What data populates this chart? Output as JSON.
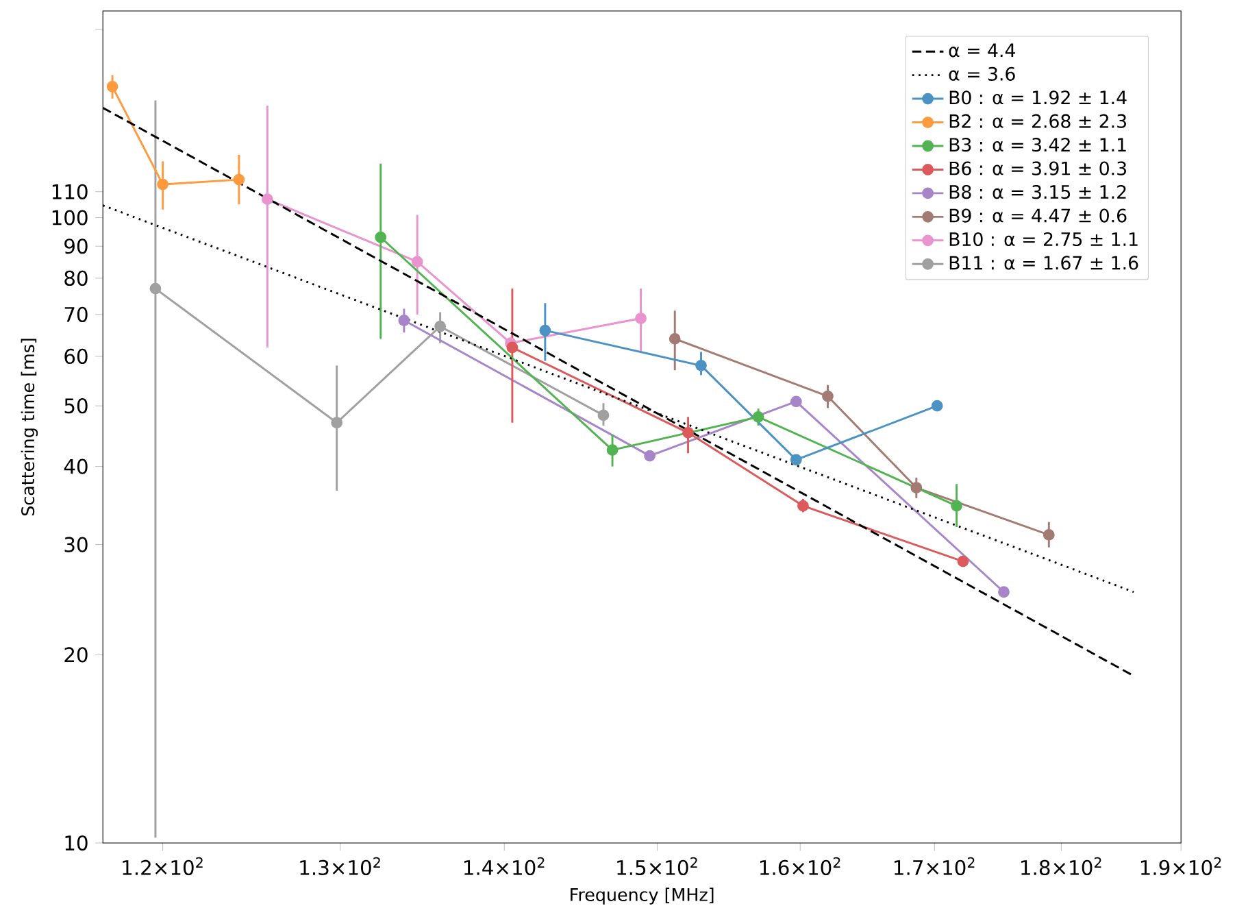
{
  "chart_data": {
    "type": "line",
    "xlabel": "Frequency [MHz]",
    "ylabel": "Scattering time [ms]",
    "log": "xy",
    "xlim": [
      116.8,
      190
    ],
    "ylim": [
      10,
      214
    ],
    "xticks": [
      {
        "value": 120,
        "label": "1.2×10$^{2}$"
      },
      {
        "value": 130,
        "label": "1.3×10$^{2}$"
      },
      {
        "value": 140,
        "label": "1.4×10$^{2}$"
      },
      {
        "value": 150,
        "label": "1.5×10$^{2}$"
      },
      {
        "value": 160,
        "label": "1.6×10$^{2}$"
      },
      {
        "value": 170,
        "label": "1.7×10$^{2}$"
      },
      {
        "value": 180,
        "label": "1.8×10$^{2}$"
      },
      {
        "value": 190,
        "label": "1.9×10$^{2}$"
      }
    ],
    "yticks": [
      10,
      20,
      30,
      40,
      50,
      60,
      70,
      80,
      90,
      100,
      110,
      {
        "value": 200,
        "label": null
      }
    ],
    "legend": "top right",
    "marker": "circle",
    "line_style": "solid",
    "grid": false,
    "series": [
      {
        "name": "α = 4.4",
        "color": "#000000",
        "marker": "none",
        "line_style": "dashed",
        "x": [
          116.8,
          186.0
        ],
        "values": [
          149.8,
          18.5
        ]
      },
      {
        "name": "α = 3.6",
        "color": "#000000",
        "marker": "none",
        "line_style": "dotted",
        "x": [
          116.8,
          186.0
        ],
        "values": [
          104.6,
          25.2
        ]
      },
      {
        "name": "B0 : α = 1.92 ± 1.4",
        "color": "#4c92c3",
        "x": [
          142.6,
          153.0,
          159.7,
          170.2
        ],
        "values": [
          66,
          58,
          41,
          50
        ],
        "errors": [
          [
            59,
            73
          ],
          [
            56,
            61
          ],
          null,
          null
        ]
      },
      {
        "name": "B2 : α = 2.68 ± 2.3",
        "color": "#ff9a3f",
        "x": [
          117.3,
          120.0,
          124.2
        ],
        "values": [
          162,
          113,
          115
        ],
        "errors": [
          [
            155,
            169
          ],
          [
            103,
            123
          ],
          [
            105,
            126
          ]
        ]
      },
      {
        "name": "B3 : α = 3.42 ± 1.1",
        "color": "#52b352",
        "x": [
          132.4,
          147.0,
          157.0,
          171.7
        ],
        "values": [
          93,
          42.5,
          48,
          34.6
        ],
        "errors": [
          [
            64,
            122
          ],
          [
            40,
            45
          ],
          [
            46.5,
            49.5
          ],
          [
            32,
            37.5
          ]
        ]
      },
      {
        "name": "B6 : α = 3.91 ± 0.3",
        "color": "#dc5a5b",
        "x": [
          140.5,
          152.1,
          160.2,
          172.2
        ],
        "values": [
          62,
          45.3,
          34.6,
          28.2
        ],
        "errors": [
          [
            47,
            77
          ],
          [
            42,
            48
          ],
          [
            33.8,
            35.5
          ],
          null
        ]
      },
      {
        "name": "B8 : α = 3.15 ± 1.2",
        "color": "#a685c8",
        "x": [
          133.8,
          149.5,
          159.7,
          175.4
        ],
        "values": [
          68.5,
          41.6,
          50.8,
          25.2
        ],
        "errors": [
          [
            65.5,
            71.5
          ],
          null,
          null,
          null
        ]
      },
      {
        "name": "B9 : α = 4.47 ± 0.6",
        "color": "#a27b72",
        "x": [
          151.2,
          162.0,
          168.6,
          179.0
        ],
        "values": [
          64,
          51.8,
          37,
          31.1
        ],
        "errors": [
          [
            57,
            71
          ],
          [
            49.6,
            54
          ],
          [
            35.6,
            38.4
          ],
          [
            29.7,
            32.6
          ]
        ]
      },
      {
        "name": "B10 : α = 2.75 ± 1.1",
        "color": "#e993cf",
        "x": [
          125.8,
          134.6,
          140.4,
          148.9
        ],
        "values": [
          107,
          85,
          63,
          69
        ],
        "errors": [
          [
            62,
            151
          ],
          [
            70,
            101
          ],
          null,
          [
            61,
            77
          ]
        ]
      },
      {
        "name": "B11 : α = 1.67 ± 1.6",
        "color": "#a0a0a0",
        "x": [
          119.6,
          129.8,
          136.0,
          146.4
        ],
        "values": [
          77,
          47,
          67,
          48.3
        ],
        "errors": [
          [
            10.2,
            154
          ],
          [
            36.6,
            58
          ],
          [
            63,
            70.6
          ],
          [
            46.5,
            50.5
          ]
        ]
      }
    ]
  }
}
